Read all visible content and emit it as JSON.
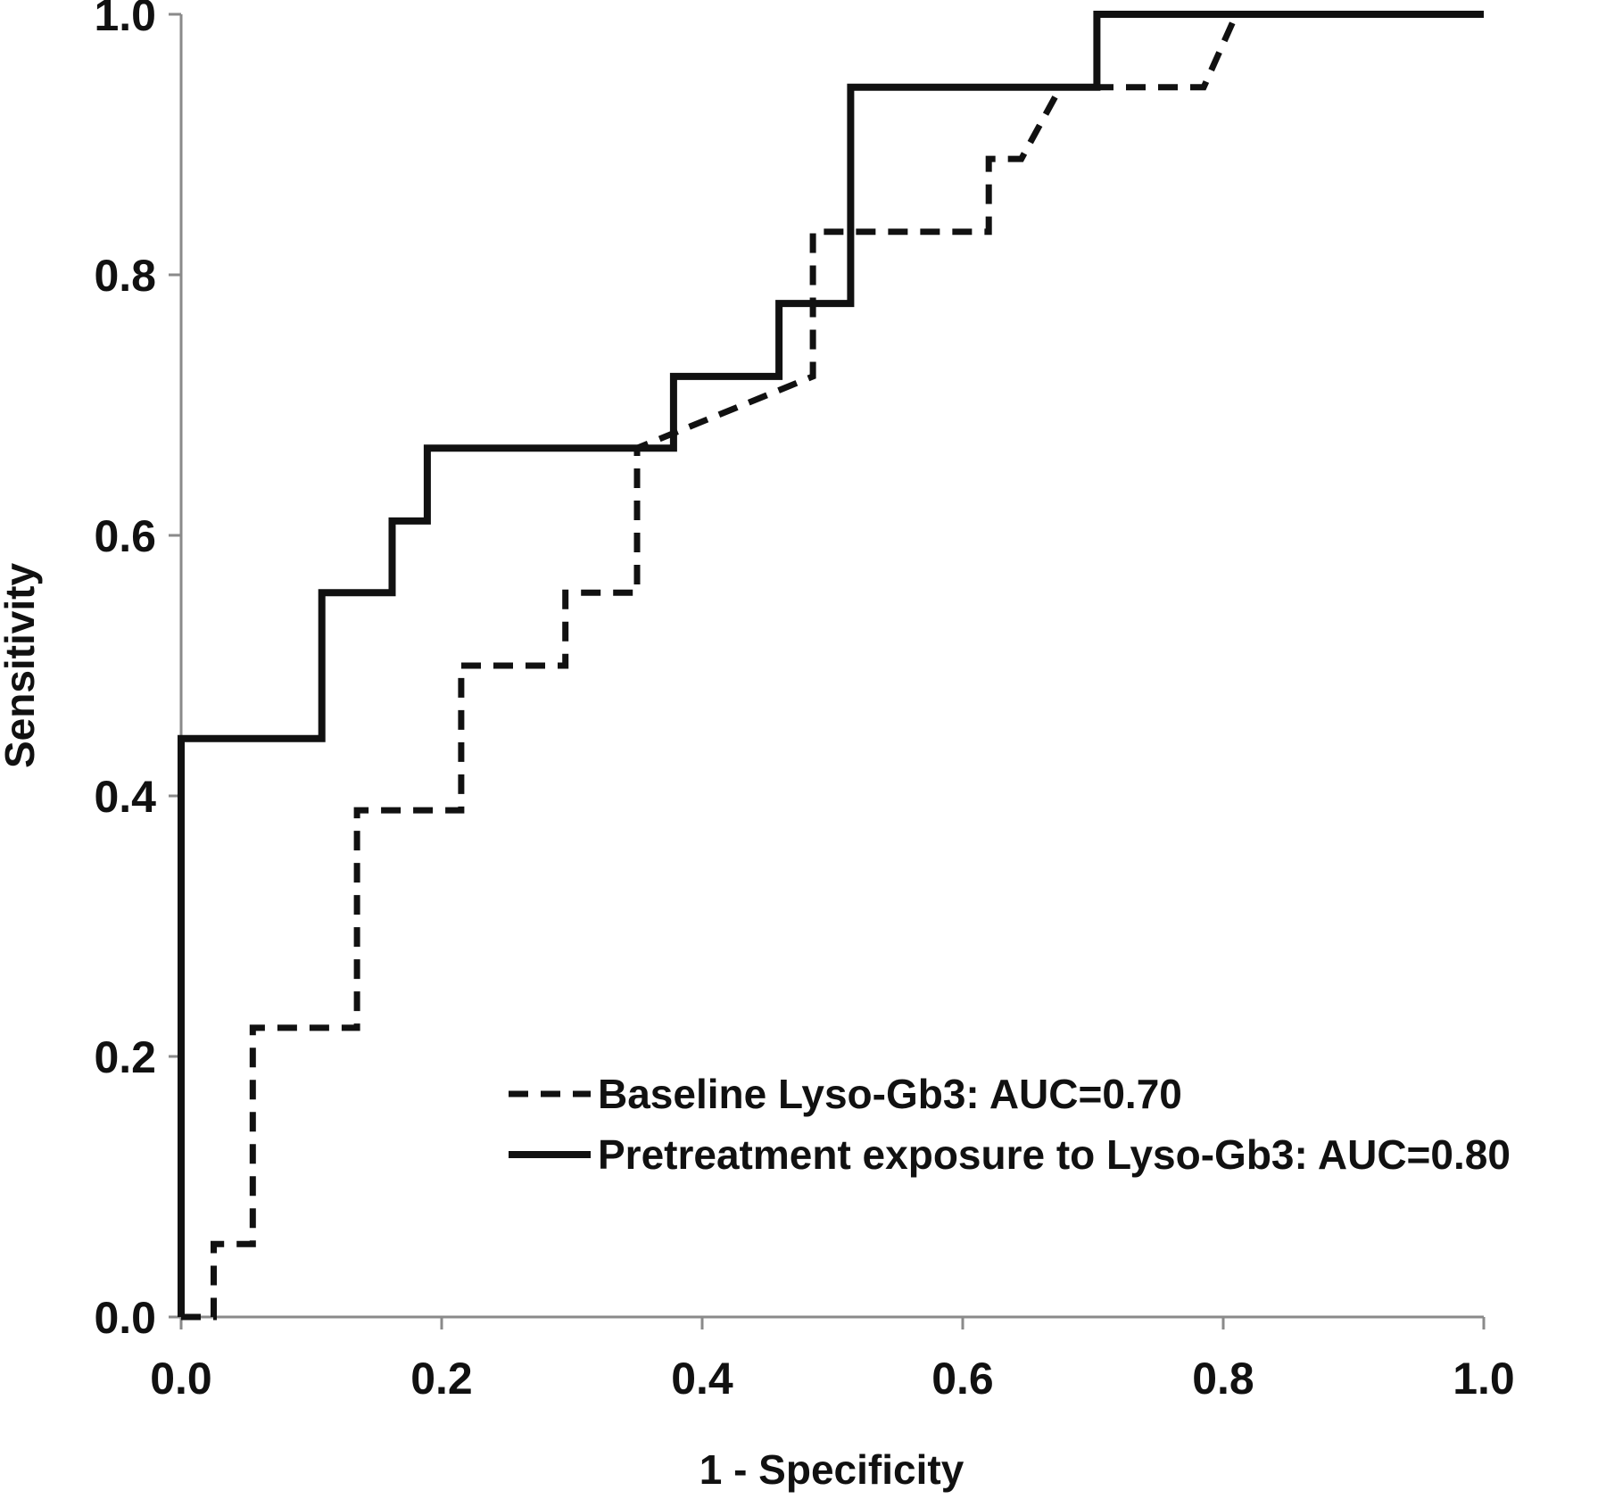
{
  "chart_data": {
    "type": "line",
    "title": "",
    "xlabel": "1 - Specificity",
    "ylabel": "Sensitivity",
    "xlim": [
      0,
      1
    ],
    "ylim": [
      0,
      1
    ],
    "x_ticks": [
      "0.0",
      "0.2",
      "0.4",
      "0.6",
      "0.8",
      "1.0"
    ],
    "y_ticks": [
      "0.0",
      "0.2",
      "0.4",
      "0.6",
      "0.8",
      "1.0"
    ],
    "grid": false,
    "legend_position": "bottom-right",
    "series": [
      {
        "name": "Baseline Lyso-Gb3: AUC=0.70",
        "style": "dashed",
        "color": "#111111",
        "x": [
          0.0,
          0.025,
          0.025,
          0.055,
          0.055,
          0.135,
          0.135,
          0.215,
          0.215,
          0.295,
          0.295,
          0.35,
          0.35,
          0.485,
          0.485,
          0.62,
          0.62,
          0.645,
          0.675,
          0.785,
          0.81,
          1.0
        ],
        "y": [
          0.0,
          0.0,
          0.056,
          0.056,
          0.222,
          0.222,
          0.389,
          0.389,
          0.5,
          0.5,
          0.556,
          0.556,
          0.667,
          0.722,
          0.833,
          0.833,
          0.889,
          0.889,
          0.944,
          0.944,
          1.0,
          1.0
        ]
      },
      {
        "name": "Pretreatment exposure to Lyso-Gb3: AUC=0.80",
        "style": "solid",
        "color": "#111111",
        "x": [
          0.0,
          0.0,
          0.108,
          0.108,
          0.162,
          0.162,
          0.189,
          0.189,
          0.378,
          0.378,
          0.459,
          0.459,
          0.514,
          0.514,
          0.703,
          0.703,
          1.0
        ],
        "y": [
          0.0,
          0.444,
          0.444,
          0.556,
          0.556,
          0.611,
          0.611,
          0.667,
          0.667,
          0.722,
          0.722,
          0.778,
          0.778,
          0.944,
          0.944,
          1.0,
          1.0
        ]
      }
    ]
  }
}
